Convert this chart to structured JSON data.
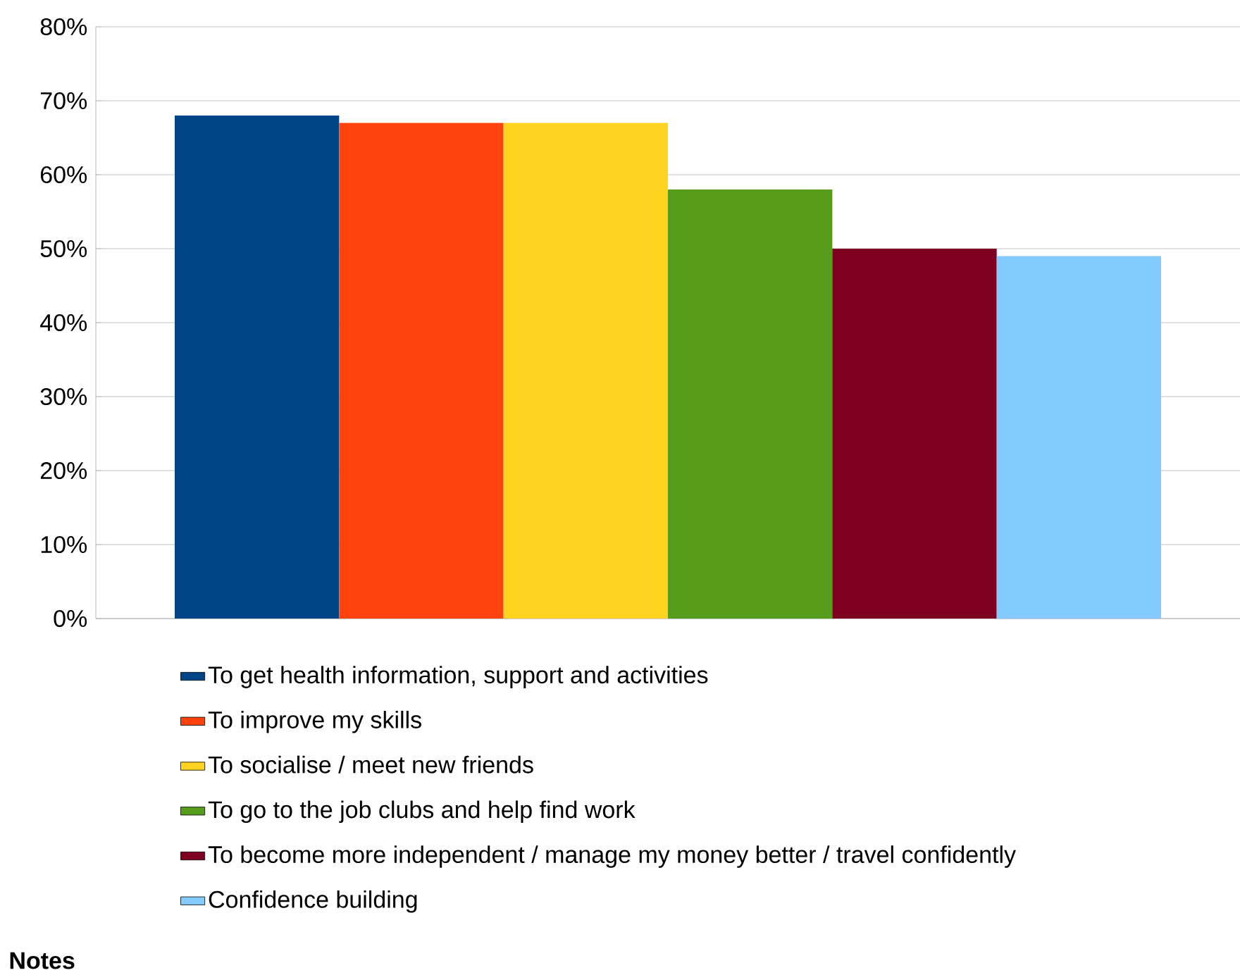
{
  "chart_data": {
    "type": "bar",
    "categories": [
      null
    ],
    "series": [
      {
        "name": "To get health information, support and activities",
        "color": "#004586",
        "values": [
          68
        ]
      },
      {
        "name": "To improve my skills",
        "color": "#ff420e",
        "values": [
          67
        ]
      },
      {
        "name": "To socialise / meet new friends",
        "color": "#ffd320",
        "values": [
          67
        ]
      },
      {
        "name": "To go to the job clubs and help find work",
        "color": "#579d1c",
        "values": [
          58
        ]
      },
      {
        "name": "To become more independent / manage my money better / travel confidently",
        "color": "#7e0021",
        "values": [
          50
        ]
      },
      {
        "name": "Confidence building",
        "color": "#83caff",
        "values": [
          49
        ]
      }
    ],
    "ylim": [
      0,
      80
    ],
    "yticks": [
      {
        "value": 0,
        "label": "0%"
      },
      {
        "value": 10,
        "label": "10%"
      },
      {
        "value": 20,
        "label": "20%"
      },
      {
        "value": 30,
        "label": "30%"
      },
      {
        "value": 40,
        "label": "40%"
      },
      {
        "value": 50,
        "label": "50%"
      },
      {
        "value": 60,
        "label": "60%"
      },
      {
        "value": 70,
        "label": "70%"
      },
      {
        "value": 80,
        "label": "80%"
      }
    ],
    "grid": "y",
    "legend": "bottom",
    "tick_labels": "y",
    "annotations": [
      "Notes"
    ]
  }
}
